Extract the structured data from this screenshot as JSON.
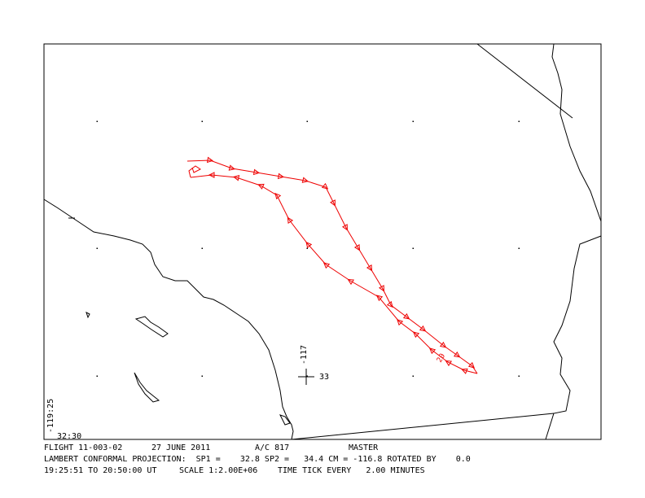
{
  "map": {
    "labels": {
      "lon_left": "-119:25",
      "lat_bottom": "32:30",
      "lon_center": "-117",
      "lat_center": "33",
      "track_time": "20"
    },
    "footer": {
      "flight": "FLIGHT 11-003-02",
      "date": "27 JUNE 2011",
      "aircraft": "A/C 817",
      "mode": "MASTER",
      "projection": "LAMBERT CONFORMAL PROJECTION:  SP1 =    32.8 SP2 =   34.4 CM = -116.8 ROTATED BY    0.0",
      "time_range": "19:25:51 TO 20:50:00 UT",
      "scale": "SCALE 1:2.00E+06",
      "time_tick": "TIME TICK EVERY   2.00 MINUTES"
    }
  }
}
